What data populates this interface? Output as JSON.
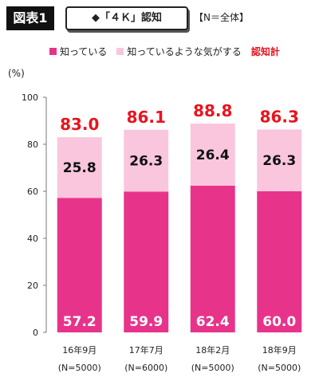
{
  "header": {
    "figure_label": "図表1",
    "topic": "◆「４Ｋ」認知",
    "sample": "【N＝全体】"
  },
  "legend": {
    "items": [
      {
        "label": "知っている",
        "color": "#e8338b"
      },
      {
        "label": "知っているような気がする",
        "color": "#f9c6de"
      }
    ],
    "total_label": "認知計",
    "total_color": "#e8141e"
  },
  "chart_data": {
    "type": "bar",
    "stacked": true,
    "unit": "(%)",
    "categories": [
      "16年9月",
      "17年7月",
      "18年2月",
      "18年9月"
    ],
    "category_sublabels": [
      "(N=5000)",
      "(N=6000)",
      "(N=5000)",
      "(N=5000)"
    ],
    "series": [
      {
        "name": "知っている",
        "values": [
          57.2,
          59.9,
          62.4,
          60.0
        ],
        "color": "#e8338b"
      },
      {
        "name": "知っているような気がする",
        "values": [
          25.8,
          26.3,
          26.4,
          26.3
        ],
        "color": "#f9c6de"
      }
    ],
    "totals": {
      "name": "認知計",
      "values": [
        83.0,
        86.1,
        88.8,
        86.3
      ]
    },
    "ylim": [
      0,
      100
    ],
    "yticks": [
      0,
      20,
      40,
      60,
      80,
      100
    ],
    "grid": false
  }
}
